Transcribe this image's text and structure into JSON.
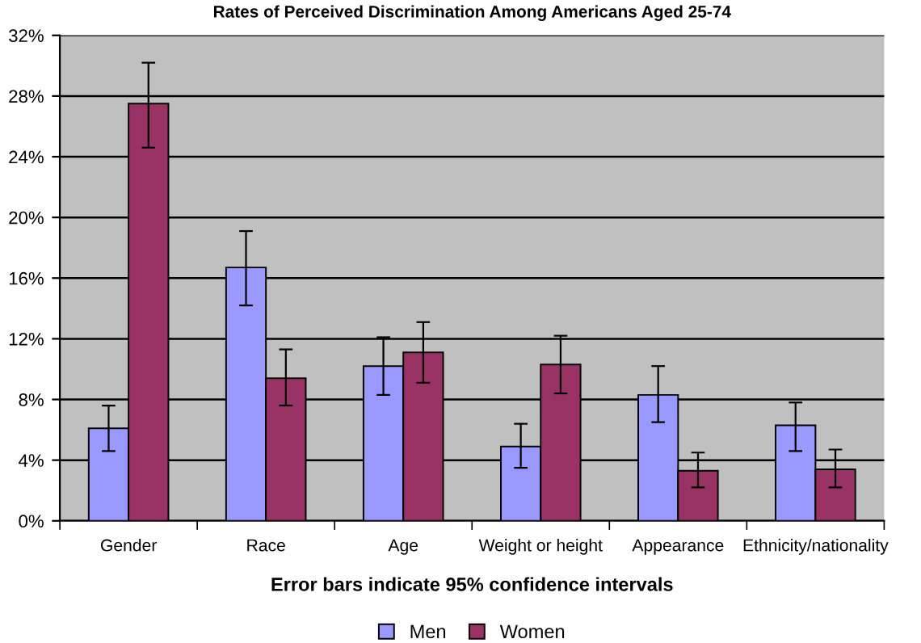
{
  "chart_data": {
    "type": "bar",
    "title": "Rates of Perceived Discrimination Among Americans Aged 25-74",
    "xlabel": "Error bars indicate 95% confidence intervals",
    "categories": [
      "Gender",
      "Race",
      "Age",
      "Weight or height",
      "Appearance",
      "Ethnicity/nationality"
    ],
    "series": [
      {
        "name": "Men",
        "color": "#9999ff",
        "values": [
          6.1,
          16.7,
          10.2,
          4.9,
          8.3,
          6.3
        ],
        "errors": [
          [
            4.6,
            7.6
          ],
          [
            14.2,
            19.1
          ],
          [
            8.3,
            12.1
          ],
          [
            3.5,
            6.4
          ],
          [
            6.5,
            10.2
          ],
          [
            4.6,
            7.8
          ]
        ]
      },
      {
        "name": "Women",
        "color": "#993366",
        "values": [
          27.5,
          9.4,
          11.1,
          10.3,
          3.3,
          3.4
        ],
        "errors": [
          [
            24.6,
            30.2
          ],
          [
            7.6,
            11.3
          ],
          [
            9.1,
            13.1
          ],
          [
            8.4,
            12.2
          ],
          [
            2.2,
            4.5
          ],
          [
            2.2,
            4.7
          ]
        ]
      }
    ],
    "ylim": [
      0,
      32
    ],
    "yticks": [
      {
        "value": 0,
        "label": "0%"
      },
      {
        "value": 4,
        "label": "4%"
      },
      {
        "value": 8,
        "label": "8%"
      },
      {
        "value": 12,
        "label": "12%"
      },
      {
        "value": 16,
        "label": "16%"
      },
      {
        "value": 20,
        "label": "20%"
      },
      {
        "value": 24,
        "label": "24%"
      },
      {
        "value": 28,
        "label": "28%"
      },
      {
        "value": 32,
        "label": "32%"
      }
    ],
    "grid": "y",
    "legend": "bottom"
  }
}
